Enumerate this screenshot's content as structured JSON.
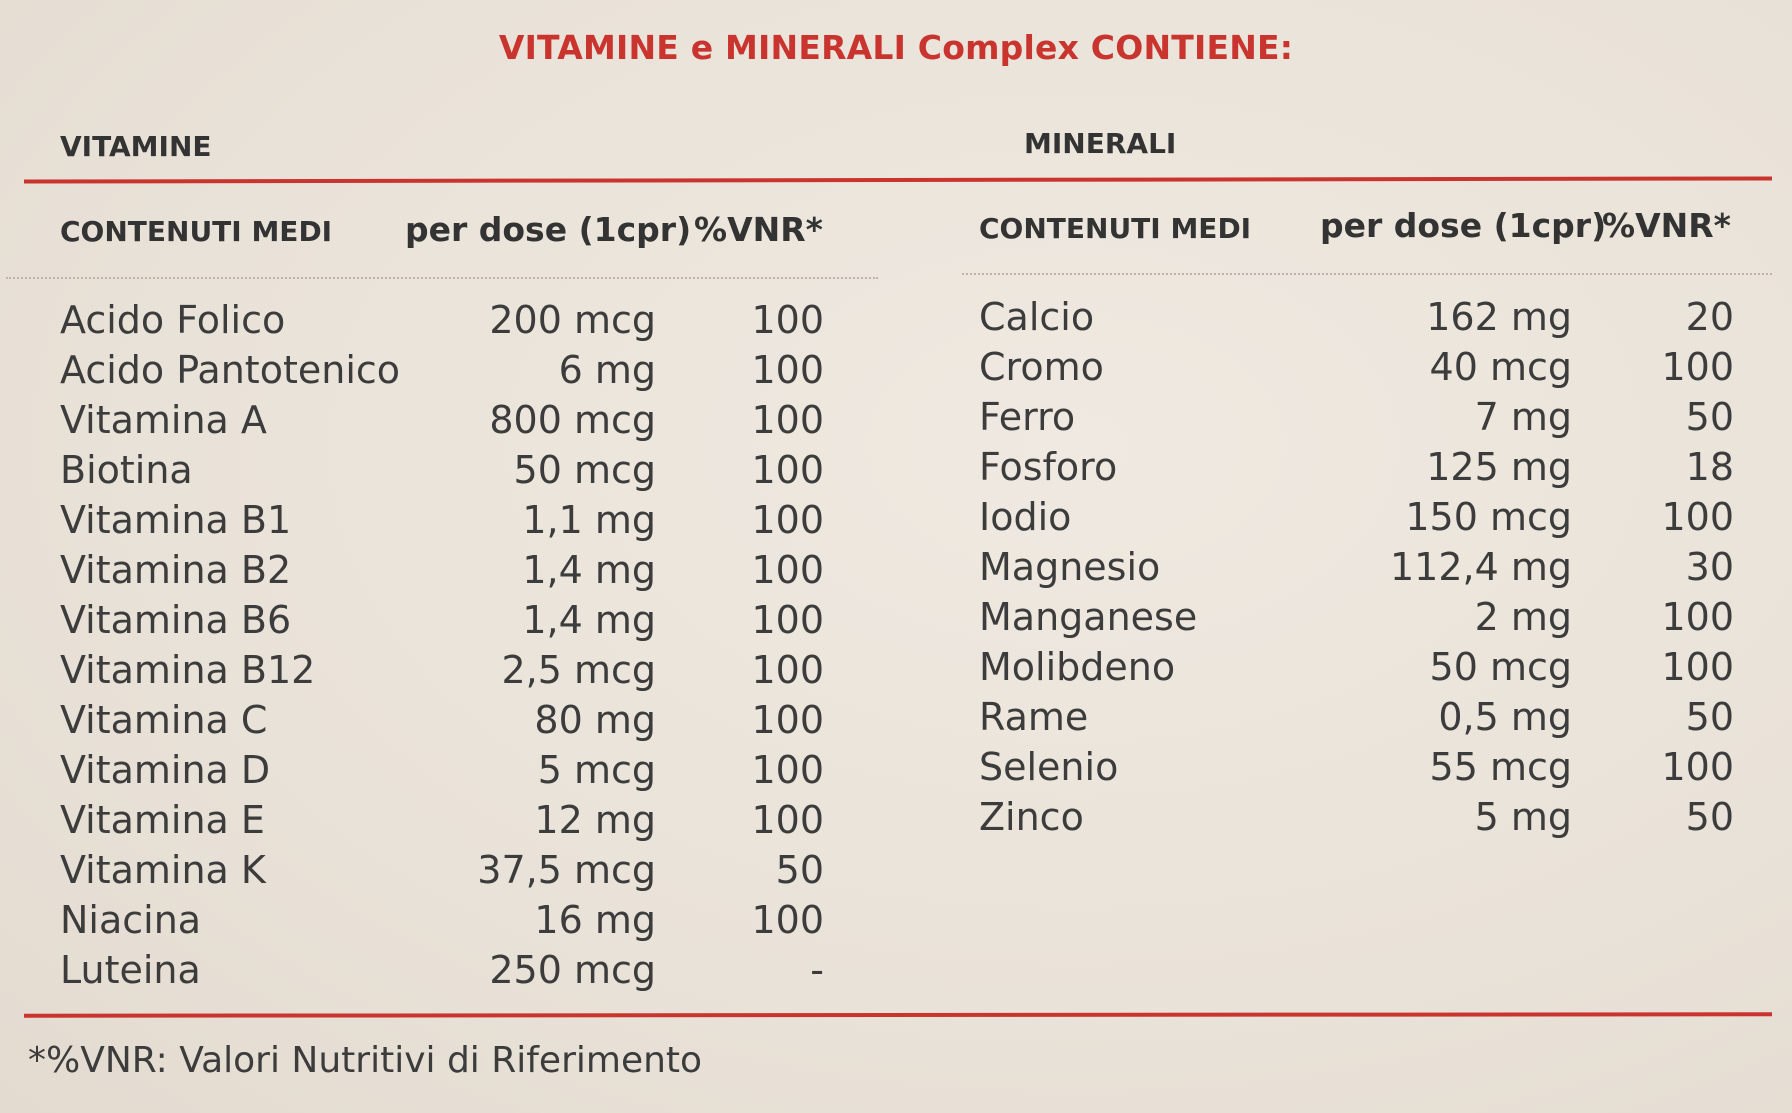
{
  "title": "VITAMINE e MINERALI Complex CONTIENE:",
  "vitamine": {
    "section_label": "VITAMINE",
    "headers": {
      "name": "CONTENUTI MEDI",
      "dose": "per dose (1cpr)",
      "vnr": "%VNR*"
    },
    "rows": [
      {
        "name": "Acido Folico",
        "dose": "200 mcg",
        "vnr": "100"
      },
      {
        "name": "Acido Pantotenico",
        "dose": "6 mg",
        "vnr": "100"
      },
      {
        "name": "Vitamina A",
        "dose": "800 mcg",
        "vnr": "100"
      },
      {
        "name": "Biotina",
        "dose": "50 mcg",
        "vnr": "100"
      },
      {
        "name": "Vitamina B1",
        "dose": "1,1 mg",
        "vnr": "100"
      },
      {
        "name": "Vitamina B2",
        "dose": "1,4 mg",
        "vnr": "100"
      },
      {
        "name": "Vitamina B6",
        "dose": "1,4 mg",
        "vnr": "100"
      },
      {
        "name": "Vitamina B12",
        "dose": "2,5 mcg",
        "vnr": "100"
      },
      {
        "name": "Vitamina C",
        "dose": "80 mg",
        "vnr": "100"
      },
      {
        "name": "Vitamina D",
        "dose": "5 mcg",
        "vnr": "100"
      },
      {
        "name": "Vitamina E",
        "dose": "12 mg",
        "vnr": "100"
      },
      {
        "name": "Vitamina K",
        "dose": "37,5 mcg",
        "vnr": "50"
      },
      {
        "name": "Niacina",
        "dose": "16 mg",
        "vnr": "100"
      },
      {
        "name": "Luteina",
        "dose": "250 mcg",
        "vnr": "-"
      }
    ]
  },
  "minerali": {
    "section_label": "MINERALI",
    "headers": {
      "name": "CONTENUTI MEDI",
      "dose": "per dose (1cpr)",
      "vnr": "%VNR*"
    },
    "rows": [
      {
        "name": "Calcio",
        "dose": "162 mg",
        "vnr": "20"
      },
      {
        "name": "Cromo",
        "dose": "40 mcg",
        "vnr": "100"
      },
      {
        "name": "Ferro",
        "dose": "7 mg",
        "vnr": "50"
      },
      {
        "name": "Fosforo",
        "dose": "125 mg",
        "vnr": "18"
      },
      {
        "name": "Iodio",
        "dose": "150 mcg",
        "vnr": "100"
      },
      {
        "name": "Magnesio",
        "dose": "112,4 mg",
        "vnr": "30"
      },
      {
        "name": "Manganese",
        "dose": "2 mg",
        "vnr": "100"
      },
      {
        "name": "Molibdeno",
        "dose": "50 mcg",
        "vnr": "100"
      },
      {
        "name": "Rame",
        "dose": "0,5 mg",
        "vnr": "50"
      },
      {
        "name": "Selenio",
        "dose": "55 mcg",
        "vnr": "100"
      },
      {
        "name": "Zinco",
        "dose": "5 mg",
        "vnr": "50"
      }
    ]
  },
  "footnote": "*%VNR: Valori Nutritivi di Riferimento",
  "colors": {
    "accent": "#c9342f",
    "text": "#3c3c3c",
    "background": "#ebe5dc"
  }
}
